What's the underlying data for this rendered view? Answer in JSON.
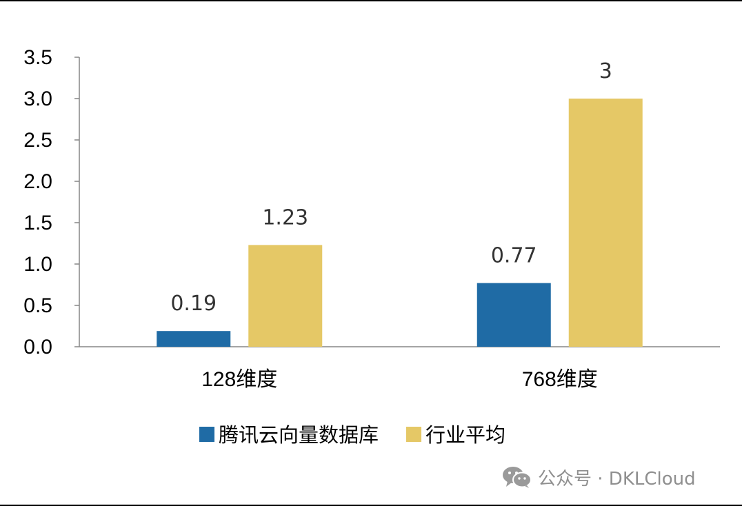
{
  "chart_data": {
    "type": "bar",
    "categories": [
      "128维度",
      "768维度"
    ],
    "series": [
      {
        "name": "腾讯云向量数据库",
        "values": [
          0.19,
          0.77
        ],
        "labels": [
          "0.19",
          "0.77"
        ],
        "color": "#1f6ba5"
      },
      {
        "name": "行业平均",
        "values": [
          1.23,
          3
        ],
        "labels": [
          "1.23",
          "3"
        ],
        "color": "#e5c866"
      }
    ],
    "title": "",
    "xlabel": "",
    "ylabel": "",
    "ylim": [
      0,
      3.5
    ],
    "yticks": [
      "0.0",
      "0.5",
      "1.0",
      "1.5",
      "2.0",
      "2.5",
      "3.0",
      "3.5"
    ],
    "grid": false,
    "legend": "bottom"
  },
  "watermark": {
    "icon": "wechat-icon",
    "text": "公众号 · DKLCloud"
  }
}
